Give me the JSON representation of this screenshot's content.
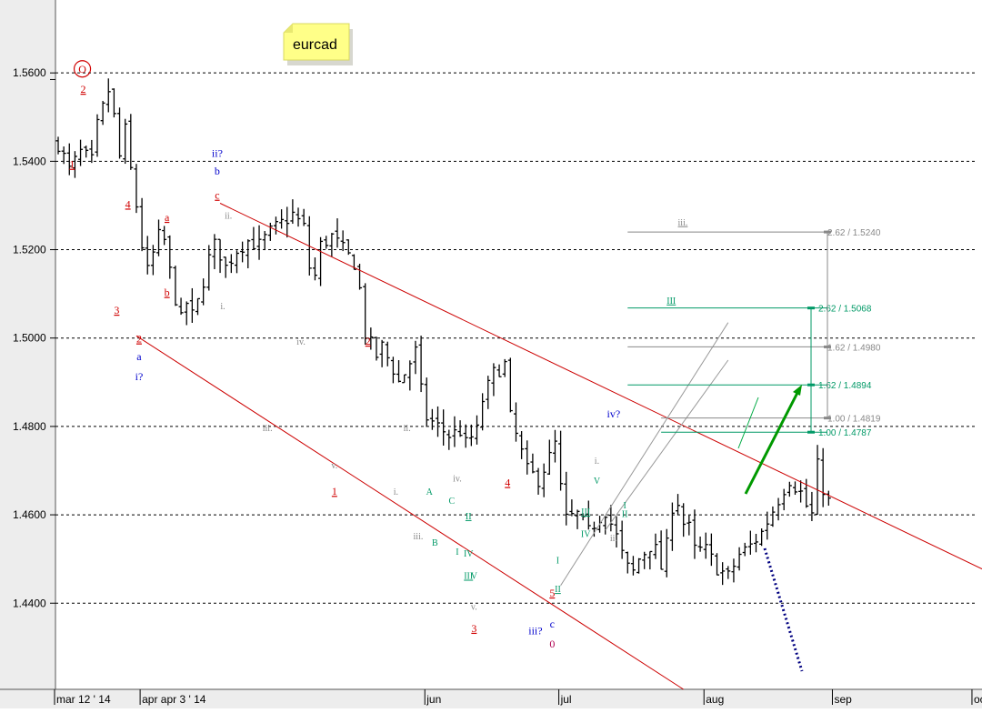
{
  "chart_data": {
    "type": "ohlc",
    "title": "eurcad",
    "y_ticks": [
      "1.5600",
      "1.5400",
      "1.5200",
      "1.5000",
      "1.4800",
      "1.4600",
      "1.4400"
    ],
    "y_tick_values": [
      1.56,
      1.54,
      1.52,
      1.5,
      1.48,
      1.46,
      1.44
    ],
    "ylim": [
      1.4205,
      1.5765
    ],
    "grid": true,
    "x_ticks": [
      {
        "label": "mar 12 ' 14",
        "bar": 0
      },
      {
        "label": "apr apr 3 ' 14",
        "bar": 15
      },
      {
        "label": "jun",
        "bar": 66
      },
      {
        "label": "jul",
        "bar": 90
      },
      {
        "label": "aug",
        "bar": 116
      },
      {
        "label": "sep",
        "bar": 139
      },
      {
        "label": "oct",
        "bar": 164
      }
    ],
    "bars_visible": 125,
    "price_path": [
      [
        0,
        1.544
      ],
      [
        2,
        1.538
      ],
      [
        4,
        1.542
      ],
      [
        6,
        1.54
      ],
      [
        7,
        1.548
      ],
      [
        9,
        1.556
      ],
      [
        10,
        1.55
      ],
      [
        11,
        1.541
      ],
      [
        12,
        1.547
      ],
      [
        13,
        1.538
      ],
      [
        14,
        1.53
      ],
      [
        15,
        1.521
      ],
      [
        16,
        1.515
      ],
      [
        17,
        1.519
      ],
      [
        18,
        1.523
      ],
      [
        19,
        1.522
      ],
      [
        20,
        1.515
      ],
      [
        21,
        1.509
      ],
      [
        22,
        1.504
      ],
      [
        23,
        1.508
      ],
      [
        24,
        1.505
      ],
      [
        25,
        1.508
      ],
      [
        26,
        1.513
      ],
      [
        27,
        1.518
      ],
      [
        28,
        1.521
      ],
      [
        29,
        1.519
      ],
      [
        30,
        1.516
      ],
      [
        32,
        1.52
      ],
      [
        34,
        1.522
      ],
      [
        36,
        1.521
      ],
      [
        38,
        1.524
      ],
      [
        40,
        1.526
      ],
      [
        42,
        1.528
      ],
      [
        44,
        1.525
      ],
      [
        45,
        1.516
      ],
      [
        46,
        1.514
      ],
      [
        47,
        1.521
      ],
      [
        49,
        1.523
      ],
      [
        51,
        1.52
      ],
      [
        53,
        1.517
      ],
      [
        54,
        1.511
      ],
      [
        55,
        1.501
      ],
      [
        57,
        1.496
      ],
      [
        58,
        1.498
      ],
      [
        60,
        1.493
      ],
      [
        61,
        1.49
      ],
      [
        62,
        1.492
      ],
      [
        64,
        1.497
      ],
      [
        65,
        1.488
      ],
      [
        66,
        1.482
      ],
      [
        68,
        1.48
      ],
      [
        70,
        1.478
      ],
      [
        72,
        1.479
      ],
      [
        73,
        1.476
      ],
      [
        75,
        1.479
      ],
      [
        76,
        1.486
      ],
      [
        78,
        1.492
      ],
      [
        80,
        1.494
      ],
      [
        81,
        1.482
      ],
      [
        82,
        1.478
      ],
      [
        84,
        1.47
      ],
      [
        86,
        1.468
      ],
      [
        88,
        1.473
      ],
      [
        89,
        1.476
      ],
      [
        90,
        1.466
      ],
      [
        91,
        1.459
      ],
      [
        93,
        1.46
      ],
      [
        95,
        1.456
      ],
      [
        96,
        1.458
      ],
      [
        98,
        1.461
      ],
      [
        100,
        1.455
      ],
      [
        101,
        1.451
      ],
      [
        102,
        1.448
      ],
      [
        103,
        1.447
      ],
      [
        104,
        1.45
      ],
      [
        106,
        1.453
      ],
      [
        107,
        1.452
      ],
      [
        108,
        1.448
      ],
      [
        109,
        1.453
      ],
      [
        110,
        1.462
      ],
      [
        111,
        1.463
      ],
      [
        112,
        1.458
      ],
      [
        113,
        1.457
      ],
      [
        114,
        1.452
      ],
      [
        116,
        1.452
      ],
      [
        118,
        1.448
      ],
      [
        120,
        1.446
      ],
      [
        122,
        1.451
      ],
      [
        124,
        1.453
      ],
      [
        126,
        1.456
      ],
      [
        128,
        1.461
      ],
      [
        130,
        1.466
      ],
      [
        131,
        1.468
      ],
      [
        133,
        1.465
      ],
      [
        134,
        1.462
      ],
      [
        135,
        1.46
      ],
      [
        136,
        1.471
      ],
      [
        137,
        1.466
      ],
      [
        138,
        1.463
      ]
    ],
    "wave_labels": [
      {
        "text": "2",
        "bar": 4,
        "price": 1.5555,
        "color": "#d00000",
        "underline": true
      },
      {
        "text": "1",
        "bar": 2,
        "price": 1.5385,
        "color": "#d00000",
        "underline": true
      },
      {
        "text": "4",
        "bar": 12,
        "price": 1.5295,
        "color": "#d00000",
        "underline": true
      },
      {
        "text": "3",
        "bar": 10,
        "price": 1.5055,
        "color": "#d00000",
        "underline": true
      },
      {
        "text": "2",
        "bar": 14,
        "price": 1.499,
        "color": "#d00000",
        "underline": true
      },
      {
        "text": "a",
        "bar": 14,
        "price": 1.495,
        "color": "#0000cc",
        "underline": false
      },
      {
        "text": "i?",
        "bar": 14,
        "price": 1.4905,
        "color": "#0000cc",
        "underline": false
      },
      {
        "text": "a",
        "bar": 19,
        "price": 1.5265,
        "color": "#d00000",
        "underline": true
      },
      {
        "text": "b",
        "bar": 19,
        "price": 1.5095,
        "color": "#d00000",
        "underline": true
      },
      {
        "text": "ii?",
        "bar": 28,
        "price": 1.541,
        "color": "#0000cc",
        "underline": false
      },
      {
        "text": "b",
        "bar": 28,
        "price": 1.537,
        "color": "#0000cc",
        "underline": false
      },
      {
        "text": "c",
        "bar": 28,
        "price": 1.5315,
        "color": "#d00000",
        "underline": true
      },
      {
        "text": "ii.",
        "bar": 30,
        "price": 1.527,
        "color": "#888888",
        "underline": false
      },
      {
        "text": "i.",
        "bar": 29,
        "price": 1.5065,
        "color": "#888888",
        "underline": false
      },
      {
        "text": "iv.",
        "bar": 43,
        "price": 1.4985,
        "color": "#888888",
        "underline": false
      },
      {
        "text": "iii.",
        "bar": 37,
        "price": 1.479,
        "color": "#888888",
        "underline": false
      },
      {
        "text": "2",
        "bar": 55,
        "price": 1.4985,
        "color": "#d00000",
        "underline": true
      },
      {
        "text": "v.",
        "bar": 49,
        "price": 1.4705,
        "color": "#888888",
        "underline": false
      },
      {
        "text": "1",
        "bar": 49,
        "price": 1.4645,
        "color": "#d00000",
        "underline": true
      },
      {
        "text": "ii.",
        "bar": 62,
        "price": 1.479,
        "color": "#888888",
        "underline": false
      },
      {
        "text": "i.",
        "bar": 60,
        "price": 1.4645,
        "color": "#888888",
        "underline": false
      },
      {
        "text": "A",
        "bar": 66,
        "price": 1.4645,
        "color": "#009966",
        "underline": false
      },
      {
        "text": "iv.",
        "bar": 71,
        "price": 1.4675,
        "color": "#888888",
        "underline": false
      },
      {
        "text": "C",
        "bar": 70,
        "price": 1.4625,
        "color": "#009966",
        "underline": false
      },
      {
        "text": "II",
        "bar": 73,
        "price": 1.459,
        "color": "#009966",
        "underline": true
      },
      {
        "text": "iii.",
        "bar": 64,
        "price": 1.4545,
        "color": "#888888",
        "underline": false
      },
      {
        "text": "B",
        "bar": 67,
        "price": 1.453,
        "color": "#009966",
        "underline": false
      },
      {
        "text": "I",
        "bar": 71,
        "price": 1.451,
        "color": "#009966",
        "underline": false
      },
      {
        "text": "IV",
        "bar": 73,
        "price": 1.4505,
        "color": "#009966",
        "underline": false
      },
      {
        "text": "III",
        "bar": 73,
        "price": 1.4455,
        "color": "#009966",
        "underline": true
      },
      {
        "text": "V",
        "bar": 74,
        "price": 1.4455,
        "color": "#009966",
        "underline": false
      },
      {
        "text": "v.",
        "bar": 74,
        "price": 1.4385,
        "color": "#888888",
        "underline": false
      },
      {
        "text": "3",
        "bar": 74,
        "price": 1.4335,
        "color": "#d00000",
        "underline": true
      },
      {
        "text": "4",
        "bar": 80,
        "price": 1.4665,
        "color": "#d00000",
        "underline": true
      },
      {
        "text": "I",
        "bar": 89,
        "price": 1.449,
        "color": "#009966",
        "underline": false
      },
      {
        "text": "II",
        "bar": 89,
        "price": 1.4425,
        "color": "#009966",
        "underline": true
      },
      {
        "text": "5",
        "bar": 88,
        "price": 1.4415,
        "color": "#d00000",
        "underline": true
      },
      {
        "text": "iii?",
        "bar": 85,
        "price": 1.433,
        "color": "#0000cc",
        "underline": false
      },
      {
        "text": "c",
        "bar": 88,
        "price": 1.4345,
        "color": "#0000cc",
        "underline": false
      },
      {
        "text": "0",
        "bar": 88,
        "price": 1.43,
        "color": "#b00050",
        "underline": false
      },
      {
        "text": "III",
        "bar": 94,
        "price": 1.46,
        "color": "#009966",
        "underline": true
      },
      {
        "text": "IV",
        "bar": 94,
        "price": 1.455,
        "color": "#009966",
        "underline": false
      },
      {
        "text": "V",
        "bar": 96,
        "price": 1.467,
        "color": "#009966",
        "underline": false
      },
      {
        "text": "i.",
        "bar": 96,
        "price": 1.4715,
        "color": "#888888",
        "underline": false
      },
      {
        "text": "iv?",
        "bar": 99,
        "price": 1.482,
        "color": "#0000cc",
        "underline": false
      },
      {
        "text": "ii.",
        "bar": 99,
        "price": 1.454,
        "color": "#888888",
        "underline": false
      },
      {
        "text": "I",
        "bar": 101,
        "price": 1.4615,
        "color": "#009966",
        "underline": false
      },
      {
        "text": "II",
        "bar": 101,
        "price": 1.4595,
        "color": "#009966",
        "underline": false
      }
    ],
    "channel_lines": [
      {
        "color": "#cc0000",
        "from": {
          "bar": 29,
          "price": 1.5305
        },
        "to": {
          "bar": 170,
          "price": 1.445
        }
      },
      {
        "color": "#cc0000",
        "from": {
          "bar": 14,
          "price": 1.5005
        },
        "to": {
          "bar": 112,
          "price": 1.4205
        }
      },
      {
        "color": "#999999",
        "from": {
          "bar": 90,
          "price": 1.444
        },
        "to": {
          "bar": 120,
          "price": 1.5035
        }
      },
      {
        "color": "#999999",
        "from": {
          "bar": 98,
          "price": 1.4565
        },
        "to": {
          "bar": 120,
          "price": 1.495
        }
      }
    ],
    "fib_levels": [
      {
        "label": "2.62 / 1.5240",
        "price": 1.524,
        "color": "#888888",
        "from_bar": 102,
        "tick": true
      },
      {
        "label": "2.62 / 1.5068",
        "price": 1.5068,
        "color": "#009966",
        "from_bar": 102,
        "tick": true
      },
      {
        "label": "1.62 / 1.4980",
        "price": 1.498,
        "color": "#888888",
        "from_bar": 102,
        "tick": true
      },
      {
        "label": "1.62 / 1.4894",
        "price": 1.4894,
        "color": "#009966",
        "from_bar": 102,
        "tick": true
      },
      {
        "label": "1.00 / 1.4819",
        "price": 1.4819,
        "color": "#888888",
        "from_bar": 108,
        "tick": true
      },
      {
        "label": "1.00 / 1.4787",
        "price": 1.4787,
        "color": "#009966",
        "from_bar": 108,
        "tick": true
      }
    ],
    "fib_labels": [
      {
        "text": "iii.",
        "bar": 111,
        "price": 1.5255,
        "color": "#888888"
      },
      {
        "text": "III",
        "bar": 109,
        "price": 1.5078,
        "color": "#009966"
      }
    ],
    "top_mark": {
      "text": "O",
      "bar": 4,
      "price": 1.5605,
      "color": "#d00000"
    },
    "note": {
      "text": "eurcad"
    }
  }
}
